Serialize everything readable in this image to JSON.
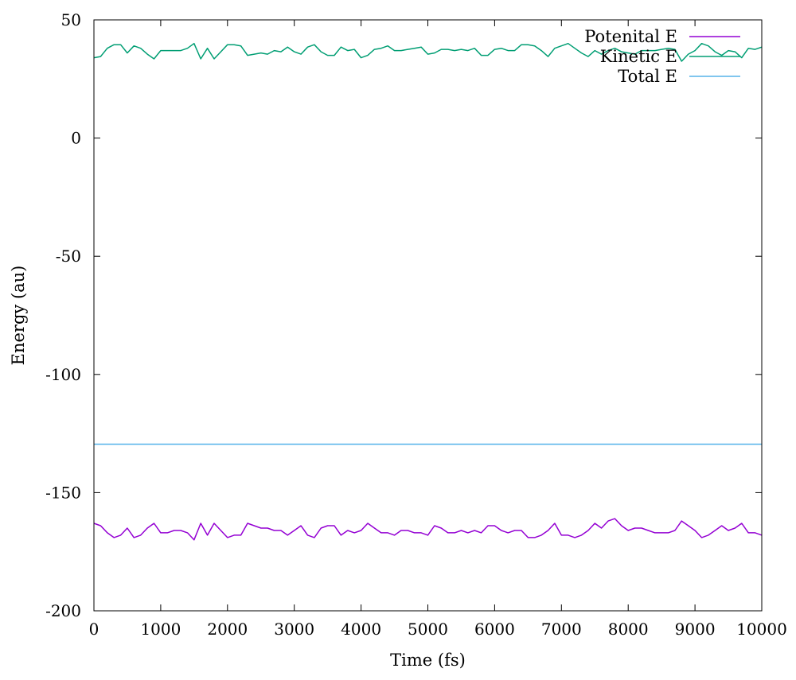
{
  "chart_data": {
    "type": "line",
    "title": "",
    "xlabel": "Time (fs)",
    "ylabel": "Energy (au)",
    "xlim": [
      0,
      10000
    ],
    "ylim": [
      -200,
      50
    ],
    "xticks": [
      0,
      1000,
      2000,
      3000,
      4000,
      5000,
      6000,
      7000,
      8000,
      9000,
      10000
    ],
    "yticks": [
      -200,
      -150,
      -100,
      -50,
      0,
      50
    ],
    "grid": false,
    "legend_position": "top-right",
    "series": [
      {
        "name": "Potenital E",
        "color": "#9400d3",
        "x": [
          0,
          100,
          200,
          300,
          400,
          500,
          600,
          700,
          800,
          900,
          1000,
          1100,
          1200,
          1300,
          1400,
          1500,
          1600,
          1700,
          1800,
          1900,
          2000,
          2100,
          2200,
          2300,
          2400,
          2500,
          2600,
          2700,
          2800,
          2900,
          3000,
          3100,
          3200,
          3300,
          3400,
          3500,
          3600,
          3700,
          3800,
          3900,
          4000,
          4100,
          4200,
          4300,
          4400,
          4500,
          4600,
          4700,
          4800,
          4900,
          5000,
          5100,
          5200,
          5300,
          5400,
          5500,
          5600,
          5700,
          5800,
          5900,
          6000,
          6100,
          6200,
          6300,
          6400,
          6500,
          6600,
          6700,
          6800,
          6900,
          7000,
          7100,
          7200,
          7300,
          7400,
          7500,
          7600,
          7700,
          7800,
          7900,
          8000,
          8100,
          8200,
          8300,
          8400,
          8500,
          8600,
          8700,
          8800,
          8900,
          9000,
          9100,
          9200,
          9300,
          9400,
          9500,
          9600,
          9700,
          9800,
          9900,
          10000
        ],
        "y": [
          -163,
          -164,
          -167,
          -169,
          -168,
          -165,
          -169,
          -168,
          -165,
          -163,
          -167,
          -167,
          -166,
          -166,
          -167,
          -170,
          -163,
          -168,
          -163,
          -166,
          -169,
          -168,
          -168,
          -163,
          -164,
          -165,
          -165,
          -166,
          -166,
          -168,
          -166,
          -164,
          -168,
          -169,
          -165,
          -164,
          -164,
          -168,
          -166,
          -167,
          -166,
          -163,
          -165,
          -167,
          -167,
          -168,
          -166,
          -166,
          -167,
          -167,
          -168,
          -164,
          -165,
          -167,
          -167,
          -166,
          -167,
          -166,
          -167,
          -164,
          -164,
          -166,
          -167,
          -166,
          -166,
          -169,
          -169,
          -168,
          -166,
          -163,
          -168,
          -168,
          -169,
          -168,
          -166,
          -163,
          -165,
          -162,
          -161,
          -164,
          -166,
          -165,
          -165,
          -166,
          -167,
          -167,
          -167,
          -166,
          -162,
          -164,
          -166,
          -169,
          -168,
          -166,
          -164,
          -166,
          -165,
          -163,
          -167,
          -167,
          -168
        ]
      },
      {
        "name": "Kinetic E",
        "color": "#009e73",
        "x": [
          0,
          100,
          200,
          300,
          400,
          500,
          600,
          700,
          800,
          900,
          1000,
          1100,
          1200,
          1300,
          1400,
          1500,
          1600,
          1700,
          1800,
          1900,
          2000,
          2100,
          2200,
          2300,
          2400,
          2500,
          2600,
          2700,
          2800,
          2900,
          3000,
          3100,
          3200,
          3300,
          3400,
          3500,
          3600,
          3700,
          3800,
          3900,
          4000,
          4100,
          4200,
          4300,
          4400,
          4500,
          4600,
          4700,
          4800,
          4900,
          5000,
          5100,
          5200,
          5300,
          5400,
          5500,
          5600,
          5700,
          5800,
          5900,
          6000,
          6100,
          6200,
          6300,
          6400,
          6500,
          6600,
          6700,
          6800,
          6900,
          7000,
          7100,
          7200,
          7300,
          7400,
          7500,
          7600,
          7700,
          7800,
          7900,
          8000,
          8100,
          8200,
          8300,
          8400,
          8500,
          8600,
          8700,
          8800,
          8900,
          9000,
          9100,
          9200,
          9300,
          9400,
          9500,
          9600,
          9700,
          9800,
          9900,
          10000
        ],
        "y": [
          34,
          34.5,
          38,
          39.5,
          39.5,
          36,
          39,
          38,
          35.5,
          33.5,
          37,
          37,
          37,
          37,
          38,
          40,
          33.5,
          38,
          33.5,
          36.5,
          39.5,
          39.5,
          39,
          35,
          35.5,
          36,
          35.5,
          37,
          36.5,
          38.5,
          36.5,
          35.5,
          38.5,
          39.5,
          36.5,
          35,
          35,
          38.5,
          37,
          37.5,
          34,
          35,
          37.5,
          38,
          39,
          37,
          37,
          37.5,
          38,
          38.5,
          35.5,
          36,
          37.5,
          37.5,
          37,
          37.5,
          37,
          38,
          35,
          35,
          37.5,
          38,
          37,
          37,
          39.5,
          39.5,
          39,
          37,
          34.5,
          38,
          39,
          40,
          38,
          36,
          34.5,
          37,
          35.5,
          37,
          38,
          36.5,
          36,
          35.5,
          37,
          37,
          37,
          37.5,
          38,
          37.5,
          32.5,
          35.5,
          37,
          40,
          39,
          36.5,
          35,
          37,
          36.5,
          34,
          38,
          37.5,
          38.5
        ]
      },
      {
        "name": "Total E",
        "color": "#56b4e9",
        "x": [
          0,
          10000
        ],
        "y": [
          -129.5,
          -129.5
        ]
      }
    ]
  }
}
